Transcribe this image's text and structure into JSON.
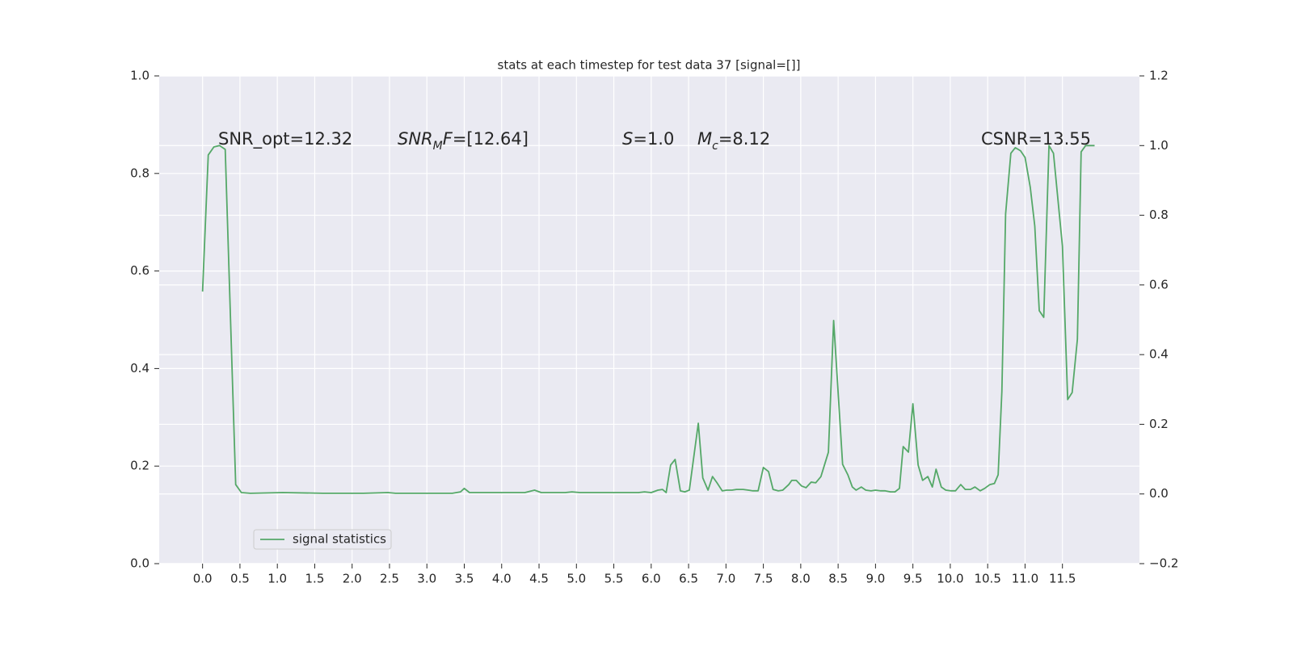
{
  "chart_data": {
    "type": "line",
    "title": "stats at each timestep for test data 37 [signal=[]]",
    "xlim": [
      -0.58,
      12.53
    ],
    "xticks": [
      {
        "value": 0,
        "label": "0.0"
      },
      0.5,
      {
        "value": 1,
        "label": "1.0"
      },
      1.5,
      {
        "value": 2,
        "label": "2.0"
      },
      2.5,
      {
        "value": 3,
        "label": "3.0"
      },
      3.5,
      {
        "value": 4,
        "label": "4.0"
      },
      4.5,
      {
        "value": 5,
        "label": "5.0"
      },
      5.5,
      {
        "value": 6,
        "label": "6.0"
      },
      6.5,
      {
        "value": 7,
        "label": "7.0"
      },
      7.5,
      {
        "value": 8,
        "label": "8.0"
      },
      8.5,
      {
        "value": 9,
        "label": "9.0"
      },
      9.5,
      {
        "value": 10,
        "label": "10.0"
      },
      10.5,
      {
        "value": 11,
        "label": "11.0"
      },
      11.5
    ],
    "ylim": [
      0,
      1
    ],
    "yticks": [
      {
        "value": 0,
        "label": "0.0"
      },
      0.2,
      0.4,
      0.6,
      0.8,
      {
        "value": 1,
        "label": "1.0"
      }
    ],
    "y2lim": [
      -0.2,
      1.2
    ],
    "y2ticks": [
      {
        "value": -0.2,
        "label": "−0.2"
      },
      {
        "value": 0,
        "label": "0.0"
      },
      0.2,
      0.4,
      0.6,
      0.8,
      {
        "value": 1,
        "label": "1.0"
      },
      1.2
    ],
    "grid": true,
    "legend": "lower left",
    "x": [
      0.0,
      0.076,
      0.151,
      0.227,
      0.303,
      0.39,
      0.443,
      0.519,
      0.64,
      1.07,
      1.61,
      2.15,
      2.48,
      2.58,
      3.34,
      3.45,
      3.5,
      3.57,
      3.99,
      4.31,
      4.44,
      4.53,
      4.85,
      4.94,
      5.05,
      5.83,
      5.91,
      6.0,
      6.09,
      6.15,
      6.2,
      6.26,
      6.32,
      6.39,
      6.45,
      6.51,
      6.63,
      6.69,
      6.76,
      6.82,
      6.88,
      6.95,
      7.01,
      7.08,
      7.14,
      7.23,
      7.3,
      7.36,
      7.43,
      7.5,
      7.57,
      7.63,
      7.7,
      7.76,
      7.84,
      7.88,
      7.94,
      8.01,
      8.07,
      8.14,
      8.2,
      8.27,
      8.31,
      8.37,
      8.44,
      8.56,
      8.63,
      8.69,
      8.74,
      8.81,
      8.87,
      8.94,
      9.0,
      9.07,
      9.13,
      9.2,
      9.26,
      9.32,
      9.37,
      9.44,
      9.5,
      9.57,
      9.63,
      9.7,
      9.76,
      9.81,
      9.88,
      9.94,
      10.01,
      10.07,
      10.14,
      10.2,
      10.27,
      10.33,
      10.4,
      10.46,
      10.53,
      10.59,
      10.64,
      10.69,
      10.74,
      10.81,
      10.87,
      10.94,
      11.0,
      11.07,
      11.13,
      11.19,
      11.25,
      11.32,
      11.38,
      11.5,
      11.57,
      11.63,
      11.7,
      11.75,
      11.81,
      11.93
    ],
    "series": [
      {
        "name": "signal statistics",
        "color": "#55a868",
        "axis": "y2",
        "values": [
          0.581,
          0.973,
          0.996,
          1.0,
          0.989,
          0.39,
          0.027,
          0.004,
          0.002,
          0.004,
          0.002,
          0.002,
          0.004,
          0.002,
          0.002,
          0.006,
          0.016,
          0.004,
          0.004,
          0.004,
          0.011,
          0.004,
          0.004,
          0.006,
          0.004,
          0.004,
          0.006,
          0.004,
          0.011,
          0.013,
          0.004,
          0.083,
          0.099,
          0.009,
          0.006,
          0.011,
          0.203,
          0.046,
          0.011,
          0.05,
          0.032,
          0.009,
          0.011,
          0.011,
          0.013,
          0.013,
          0.011,
          0.009,
          0.009,
          0.076,
          0.064,
          0.013,
          0.009,
          0.011,
          0.027,
          0.039,
          0.039,
          0.023,
          0.018,
          0.034,
          0.032,
          0.05,
          0.078,
          0.12,
          0.498,
          0.085,
          0.055,
          0.02,
          0.011,
          0.02,
          0.011,
          0.009,
          0.011,
          0.009,
          0.009,
          0.006,
          0.006,
          0.016,
          0.136,
          0.12,
          0.259,
          0.083,
          0.039,
          0.05,
          0.02,
          0.071,
          0.02,
          0.011,
          0.009,
          0.009,
          0.027,
          0.013,
          0.013,
          0.02,
          0.009,
          0.016,
          0.027,
          0.03,
          0.055,
          0.294,
          0.804,
          0.978,
          0.994,
          0.985,
          0.966,
          0.88,
          0.769,
          0.526,
          0.507,
          1.0,
          0.978,
          0.711,
          0.271,
          0.291,
          0.444,
          0.982,
          1.0,
          1.0
        ]
      }
    ],
    "annotations": [
      {
        "parts": [
          {
            "text": "SNR_opt=12.32"
          }
        ]
      },
      {
        "parts": [
          {
            "text": "SNR",
            "math": true
          },
          {
            "text": "M",
            "math": true,
            "sub": true
          },
          {
            "text": "F",
            "math": true
          },
          {
            "text": "=[12.64]"
          }
        ]
      },
      {
        "parts": [
          {
            "text": "S",
            "math": true
          },
          {
            "text": "=1.0"
          }
        ]
      },
      {
        "parts": [
          {
            "text": "M",
            "math": true
          },
          {
            "text": "c",
            "math": true,
            "sub": true
          },
          {
            "text": "=8.12"
          }
        ]
      },
      {
        "parts": [
          {
            "text": "CSNR=13.55"
          }
        ]
      }
    ]
  }
}
